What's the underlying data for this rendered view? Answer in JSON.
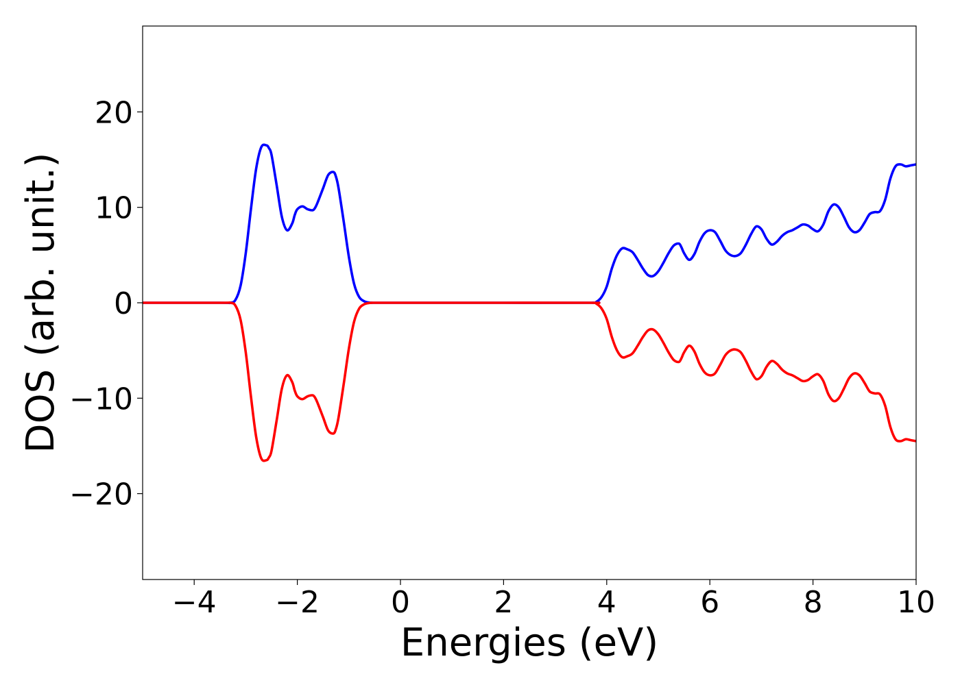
{
  "chart_data": {
    "type": "line",
    "title": "",
    "xlabel": "Energies (eV)",
    "ylabel": "DOS (arb. unit.)",
    "xlim": [
      -5,
      10
    ],
    "ylim": [
      -29,
      29
    ],
    "xticks": [
      -4,
      -2,
      0,
      2,
      4,
      6,
      8,
      10
    ],
    "yticks": [
      -20,
      -10,
      0,
      10,
      20
    ],
    "xtick_labels": [
      "−4",
      "−2",
      "0",
      "2",
      "4",
      "6",
      "8",
      "10"
    ],
    "ytick_labels": [
      "−20",
      "−10",
      "0",
      "10",
      "20"
    ],
    "grid": false,
    "legend": false,
    "colors": {
      "spin_up": "#0000ff",
      "spin_down": "#ff0000"
    },
    "series": [
      {
        "color": "#0000ff",
        "x": [
          -5.0,
          -3.5,
          -3.3,
          -3.2,
          -3.1,
          -3.0,
          -2.9,
          -2.8,
          -2.7,
          -2.6,
          -2.55,
          -2.5,
          -2.4,
          -2.3,
          -2.2,
          -2.1,
          -2.05,
          -2.0,
          -1.9,
          -1.8,
          -1.7,
          -1.65,
          -1.6,
          -1.5,
          -1.4,
          -1.3,
          -1.25,
          -1.2,
          -1.1,
          -1.0,
          -0.9,
          -0.8,
          -0.7,
          -0.6,
          -0.55,
          -0.5,
          0.0,
          2.0,
          3.7,
          3.8,
          3.9,
          4.0,
          4.1,
          4.2,
          4.3,
          4.4,
          4.5,
          4.6,
          4.7,
          4.8,
          4.9,
          5.0,
          5.1,
          5.2,
          5.3,
          5.4,
          5.45,
          5.5,
          5.6,
          5.7,
          5.8,
          5.9,
          6.0,
          6.1,
          6.2,
          6.3,
          6.4,
          6.5,
          6.6,
          6.7,
          6.8,
          6.9,
          7.0,
          7.1,
          7.2,
          7.3,
          7.4,
          7.5,
          7.6,
          7.7,
          7.8,
          7.9,
          8.0,
          8.1,
          8.2,
          8.3,
          8.4,
          8.5,
          8.6,
          8.7,
          8.8,
          8.9,
          9.0,
          9.1,
          9.2,
          9.3,
          9.4,
          9.5,
          9.6,
          9.7,
          9.8,
          9.9,
          10.0
        ],
        "y": [
          0.0,
          0.0,
          0.0,
          0.3,
          1.8,
          5.2,
          9.8,
          14.0,
          16.3,
          16.5,
          16.2,
          15.5,
          12.3,
          9.0,
          7.6,
          8.3,
          9.2,
          9.8,
          10.1,
          9.8,
          9.7,
          10.0,
          10.6,
          12.0,
          13.4,
          13.7,
          13.2,
          12.0,
          8.5,
          4.8,
          2.0,
          0.6,
          0.15,
          0.02,
          0.0,
          0.0,
          0.0,
          0.0,
          0.0,
          0.1,
          0.6,
          1.7,
          3.6,
          5.0,
          5.7,
          5.6,
          5.3,
          4.5,
          3.6,
          2.9,
          2.8,
          3.3,
          4.2,
          5.2,
          6.0,
          6.2,
          5.8,
          5.2,
          4.5,
          5.1,
          6.4,
          7.3,
          7.6,
          7.4,
          6.5,
          5.5,
          5.0,
          4.9,
          5.2,
          6.1,
          7.2,
          8.0,
          7.7,
          6.7,
          6.1,
          6.4,
          7.0,
          7.4,
          7.6,
          7.9,
          8.2,
          8.1,
          7.7,
          7.5,
          8.2,
          9.6,
          10.3,
          10.0,
          9.0,
          7.9,
          7.4,
          7.6,
          8.4,
          9.3,
          9.5,
          9.6,
          10.8,
          13.0,
          14.3,
          14.5,
          14.3,
          14.4,
          14.5
        ]
      },
      {
        "color": "#ff0000",
        "x": [
          -5.0,
          -3.5,
          -3.3,
          -3.2,
          -3.1,
          -3.0,
          -2.9,
          -2.8,
          -2.7,
          -2.6,
          -2.55,
          -2.5,
          -2.4,
          -2.3,
          -2.2,
          -2.1,
          -2.05,
          -2.0,
          -1.9,
          -1.8,
          -1.7,
          -1.65,
          -1.6,
          -1.5,
          -1.4,
          -1.3,
          -1.25,
          -1.2,
          -1.1,
          -1.0,
          -0.9,
          -0.8,
          -0.7,
          -0.6,
          -0.55,
          -0.5,
          0.0,
          2.0,
          3.7,
          3.8,
          3.9,
          4.0,
          4.1,
          4.2,
          4.3,
          4.4,
          4.5,
          4.6,
          4.7,
          4.8,
          4.9,
          5.0,
          5.1,
          5.2,
          5.3,
          5.4,
          5.45,
          5.5,
          5.6,
          5.7,
          5.8,
          5.9,
          6.0,
          6.1,
          6.2,
          6.3,
          6.4,
          6.5,
          6.6,
          6.7,
          6.8,
          6.9,
          7.0,
          7.1,
          7.2,
          7.3,
          7.4,
          7.5,
          7.6,
          7.7,
          7.8,
          7.9,
          8.0,
          8.1,
          8.2,
          8.3,
          8.4,
          8.5,
          8.6,
          8.7,
          8.8,
          8.9,
          9.0,
          9.1,
          9.2,
          9.3,
          9.4,
          9.5,
          9.6,
          9.7,
          9.8,
          9.9,
          10.0
        ],
        "y": [
          0.0,
          0.0,
          0.0,
          -0.3,
          -1.8,
          -5.2,
          -9.8,
          -14.0,
          -16.3,
          -16.5,
          -16.2,
          -15.5,
          -12.3,
          -9.0,
          -7.6,
          -8.3,
          -9.2,
          -9.8,
          -10.1,
          -9.8,
          -9.7,
          -10.0,
          -10.6,
          -12.0,
          -13.4,
          -13.7,
          -13.2,
          -12.0,
          -8.5,
          -4.8,
          -2.0,
          -0.6,
          -0.15,
          -0.02,
          0.0,
          0.0,
          0.0,
          0.0,
          0.0,
          -0.1,
          -0.6,
          -1.7,
          -3.6,
          -5.0,
          -5.7,
          -5.6,
          -5.3,
          -4.5,
          -3.6,
          -2.9,
          -2.8,
          -3.3,
          -4.2,
          -5.2,
          -6.0,
          -6.2,
          -5.8,
          -5.2,
          -4.5,
          -5.1,
          -6.4,
          -7.3,
          -7.6,
          -7.4,
          -6.5,
          -5.5,
          -5.0,
          -4.9,
          -5.2,
          -6.1,
          -7.2,
          -8.0,
          -7.7,
          -6.7,
          -6.1,
          -6.4,
          -7.0,
          -7.4,
          -7.6,
          -7.9,
          -8.2,
          -8.1,
          -7.7,
          -7.5,
          -8.2,
          -9.6,
          -10.3,
          -10.0,
          -9.0,
          -7.9,
          -7.4,
          -7.6,
          -8.4,
          -9.3,
          -9.5,
          -9.6,
          -10.8,
          -13.0,
          -14.3,
          -14.5,
          -14.3,
          -14.4,
          -14.5
        ]
      }
    ]
  }
}
